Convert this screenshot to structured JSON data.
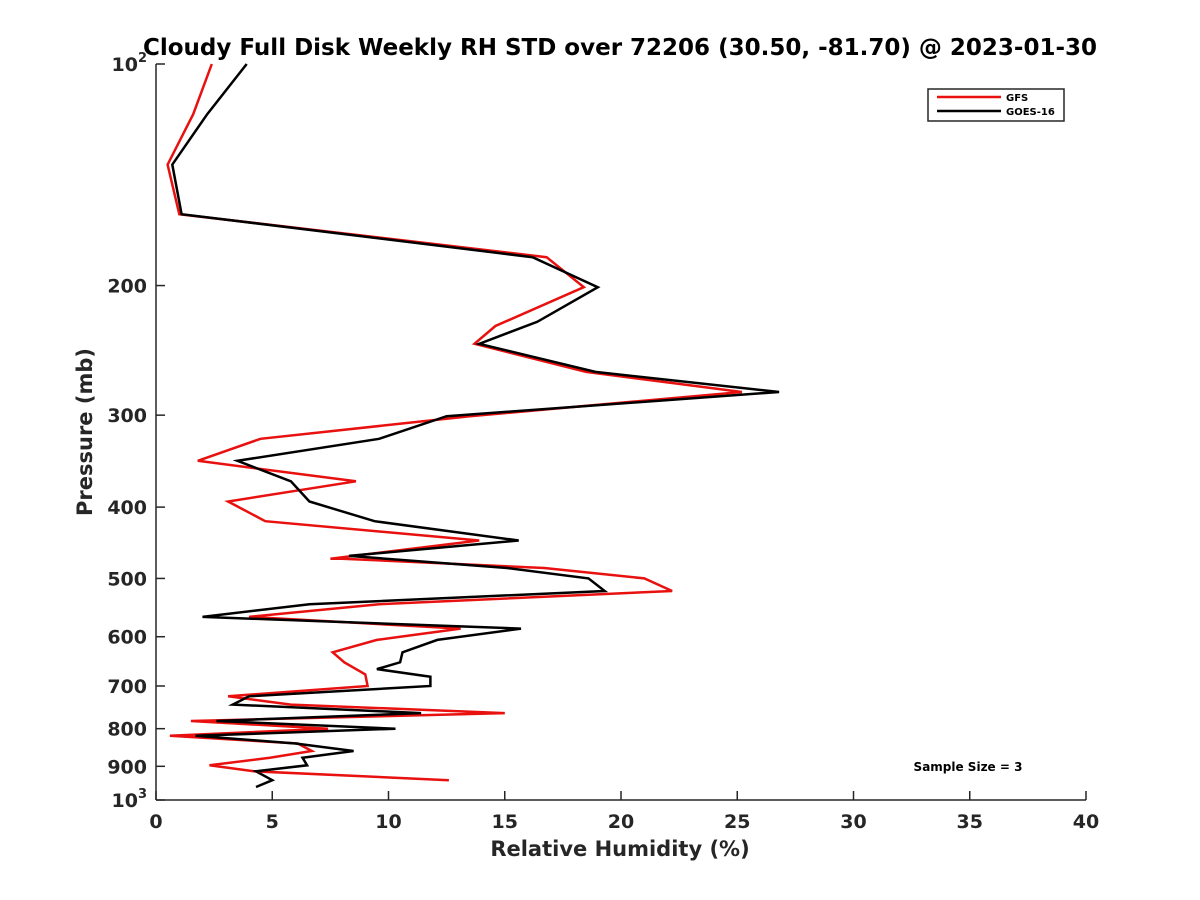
{
  "chart_data": {
    "type": "line",
    "title": "Cloudy Full Disk Weekly RH STD over 72206 (30.50, -81.70) @ 2023-01-30",
    "xlabel": "Relative Humidity (%)",
    "ylabel": "Pressure (mb)",
    "xlim": [
      0,
      40
    ],
    "ylim": [
      100,
      1000
    ],
    "y_scale": "log",
    "y_reversed": true,
    "x_ticks": [
      0,
      5,
      10,
      15,
      20,
      25,
      30,
      35,
      40
    ],
    "x_tick_labels": [
      "0",
      "5",
      "10",
      "15",
      "20",
      "25",
      "30",
      "35",
      "40"
    ],
    "y_ticks": [
      100,
      200,
      300,
      400,
      500,
      600,
      700,
      800,
      900,
      1000
    ],
    "y_tick_labels": [
      {
        "base": "10",
        "exp": "2"
      },
      {
        "base": "200",
        "exp": ""
      },
      {
        "base": "300",
        "exp": ""
      },
      {
        "base": "400",
        "exp": ""
      },
      {
        "base": "500",
        "exp": ""
      },
      {
        "base": "600",
        "exp": ""
      },
      {
        "base": "700",
        "exp": ""
      },
      {
        "base": "800",
        "exp": ""
      },
      {
        "base": "900",
        "exp": ""
      },
      {
        "base": "10",
        "exp": "3"
      }
    ],
    "legend": {
      "location": "top-right"
    },
    "annotation": "Sample Size = 3",
    "series": [
      {
        "name": "GFS",
        "color": "#e8110f",
        "points": [
          [
            2.4,
            100
          ],
          [
            1.6,
            117
          ],
          [
            0.5,
            137
          ],
          [
            1.0,
            160
          ],
          [
            16.8,
            183
          ],
          [
            18.4,
            201
          ],
          [
            14.6,
            227
          ],
          [
            13.7,
            240
          ],
          [
            18.5,
            262
          ],
          [
            25.2,
            279
          ],
          [
            13.5,
            301
          ],
          [
            4.5,
            323
          ],
          [
            1.8,
            346
          ],
          [
            8.6,
            369
          ],
          [
            3.1,
            393
          ],
          [
            4.7,
            418
          ],
          [
            13.9,
            444
          ],
          [
            7.5,
            470
          ],
          [
            8.0,
            470
          ],
          [
            16.7,
            484
          ],
          [
            21.0,
            500
          ],
          [
            22.2,
            520
          ],
          [
            9.6,
            542
          ],
          [
            4.0,
            564
          ],
          [
            13.1,
            585
          ],
          [
            9.5,
            606
          ],
          [
            7.6,
            630
          ],
          [
            8.1,
            650
          ],
          [
            9.0,
            675
          ],
          [
            9.1,
            700
          ],
          [
            3.1,
            723
          ],
          [
            5.8,
            742
          ],
          [
            15.0,
            762
          ],
          [
            1.5,
            781
          ],
          [
            7.4,
            800
          ],
          [
            0.6,
            818
          ],
          [
            6.1,
            838
          ],
          [
            6.7,
            858
          ],
          [
            4.9,
            876
          ],
          [
            2.3,
            897
          ],
          [
            4.2,
            914
          ],
          [
            12.6,
            940
          ]
        ]
      },
      {
        "name": "GOES-16",
        "color": "#000000",
        "points": [
          [
            3.9,
            100
          ],
          [
            2.2,
            117
          ],
          [
            0.7,
            137
          ],
          [
            1.1,
            160
          ],
          [
            16.2,
            183
          ],
          [
            19.0,
            201
          ],
          [
            16.4,
            224
          ],
          [
            13.9,
            240
          ],
          [
            18.9,
            262
          ],
          [
            26.8,
            279
          ],
          [
            12.5,
            301
          ],
          [
            9.6,
            323
          ],
          [
            3.5,
            346
          ],
          [
            5.8,
            369
          ],
          [
            6.6,
            393
          ],
          [
            9.4,
            418
          ],
          [
            15.6,
            444
          ],
          [
            8.3,
            466
          ],
          [
            15.1,
            484
          ],
          [
            18.6,
            500
          ],
          [
            19.3,
            520
          ],
          [
            6.6,
            542
          ],
          [
            2.0,
            564
          ],
          [
            15.7,
            585
          ],
          [
            12.1,
            606
          ],
          [
            10.6,
            630
          ],
          [
            10.5,
            650
          ],
          [
            9.5,
            664
          ],
          [
            11.8,
            680
          ],
          [
            11.8,
            700
          ],
          [
            4.0,
            723
          ],
          [
            3.3,
            742
          ],
          [
            11.4,
            762
          ],
          [
            2.6,
            781
          ],
          [
            10.3,
            800
          ],
          [
            1.7,
            818
          ],
          [
            6.0,
            838
          ],
          [
            8.5,
            858
          ],
          [
            6.3,
            876
          ],
          [
            6.5,
            897
          ],
          [
            4.3,
            914
          ],
          [
            5.0,
            940
          ],
          [
            4.3,
            960
          ]
        ]
      }
    ]
  }
}
